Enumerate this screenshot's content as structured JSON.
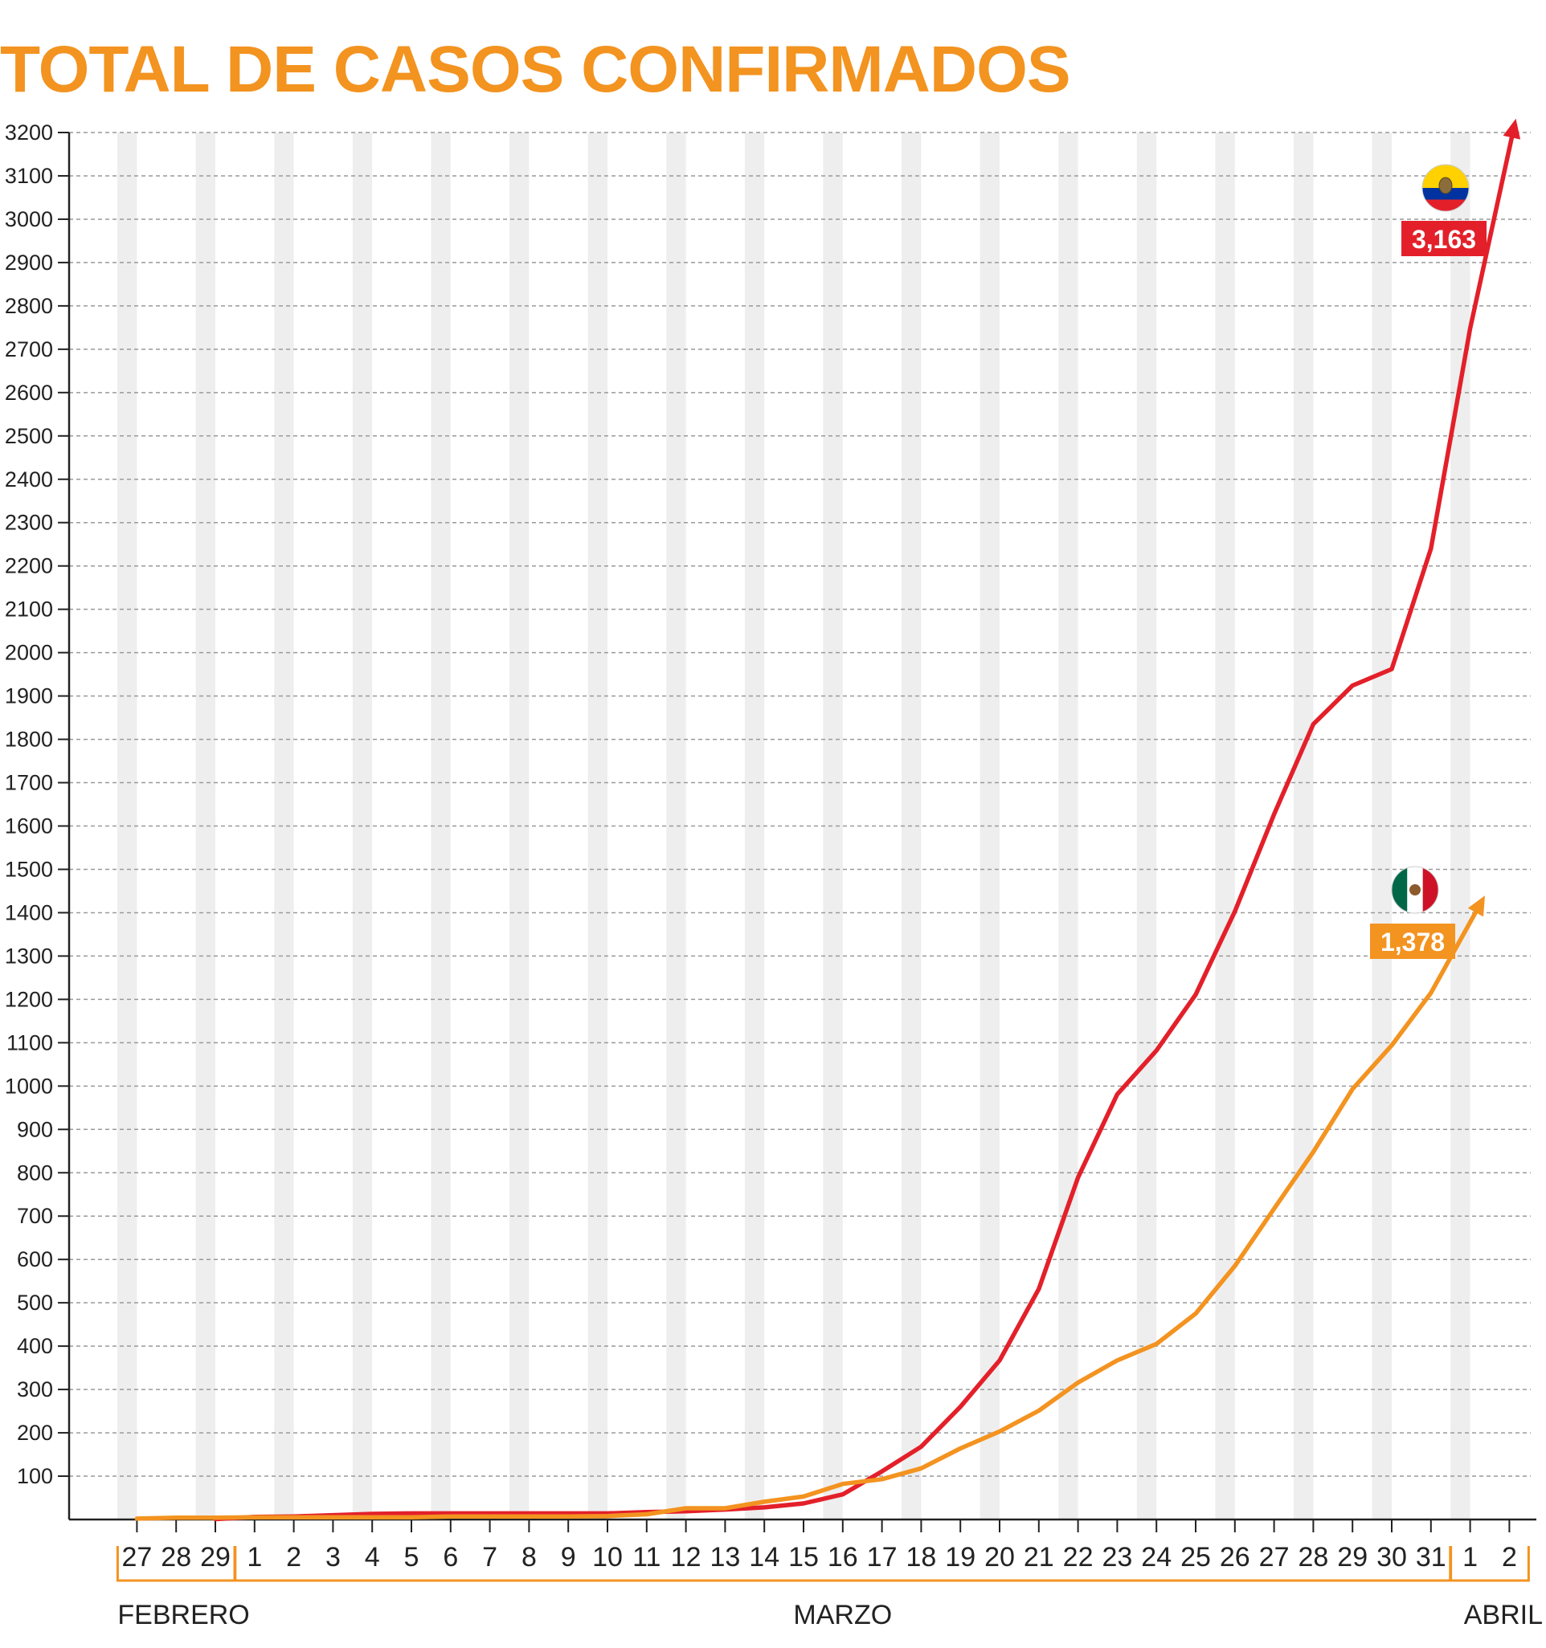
{
  "title": "TOTAL DE CASOS CONFIRMADOS",
  "colors": {
    "title": "#f39320",
    "ecuador": "#e3202a",
    "mexico": "#f39320",
    "band": "#eeeeee",
    "grid": "#999999",
    "axis": "#222222"
  },
  "chart_data": {
    "type": "line",
    "title": "TOTAL DE CASOS CONFIRMADOS",
    "xlabel": "",
    "ylabel": "",
    "ylim": [
      0,
      3200
    ],
    "yticks": [
      100,
      200,
      300,
      400,
      500,
      600,
      700,
      800,
      900,
      1000,
      1100,
      1200,
      1300,
      1400,
      1500,
      1600,
      1700,
      1800,
      1900,
      2000,
      2100,
      2200,
      2300,
      2400,
      2500,
      2600,
      2700,
      2800,
      2900,
      3000,
      3100,
      3200
    ],
    "grid": true,
    "categories": [
      "27",
      "28",
      "29",
      "1",
      "2",
      "3",
      "4",
      "5",
      "6",
      "7",
      "8",
      "9",
      "10",
      "11",
      "12",
      "13",
      "14",
      "15",
      "16",
      "17",
      "18",
      "19",
      "20",
      "21",
      "22",
      "23",
      "24",
      "25",
      "26",
      "27",
      "28",
      "29",
      "30",
      "31",
      "1",
      "2"
    ],
    "months": [
      {
        "label": "FEBRERO",
        "from": 0,
        "to": 2
      },
      {
        "label": "MARZO",
        "from": 3,
        "to": 33
      },
      {
        "label": "ABRIL",
        "from": 34,
        "to": 35
      }
    ],
    "series": [
      {
        "key": "ecuador",
        "flag_icon": "ecuador-flag-icon",
        "end_label": "3,163",
        "values": [
          null,
          null,
          1,
          6,
          7,
          10,
          13,
          14,
          14,
          14,
          14,
          14,
          14,
          17,
          19,
          23,
          28,
          37,
          58,
          111,
          168,
          260,
          367,
          532,
          789,
          981,
          1082,
          1211,
          1403,
          1627,
          1835,
          1924,
          1962,
          2240,
          2748,
          3163
        ]
      },
      {
        "key": "mexico",
        "flag_icon": "mexico-flag-icon",
        "end_label": "1,378",
        "values": [
          2,
          4,
          4,
          5,
          5,
          5,
          5,
          5,
          7,
          7,
          7,
          7,
          8,
          12,
          26,
          26,
          41,
          53,
          82,
          93,
          118,
          164,
          203,
          251,
          316,
          367,
          405,
          475,
          585,
          717,
          848,
          993,
          1094,
          1215,
          1378,
          null
        ]
      }
    ]
  }
}
